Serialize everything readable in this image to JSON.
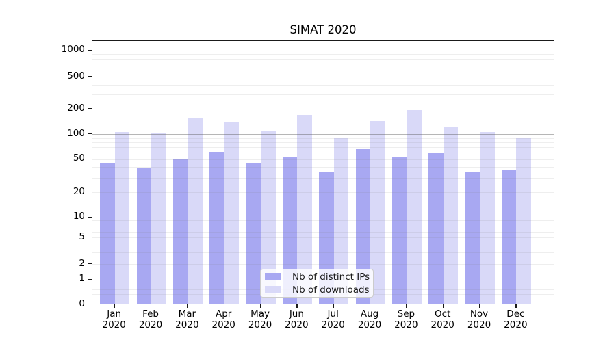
{
  "chart_data": {
    "type": "bar",
    "title": "SIMAT 2020",
    "categories": [
      "Jan 2020",
      "Feb 2020",
      "Mar 2020",
      "Apr 2020",
      "May 2020",
      "Jun 2020",
      "Jul 2020",
      "Aug 2020",
      "Sep 2020",
      "Oct 2020",
      "Nov 2020",
      "Dec 2020"
    ],
    "series": [
      {
        "name": "Nb of distinct IPs",
        "color": "#a8a8f2",
        "values": [
          44,
          38,
          50,
          60,
          44,
          52,
          34,
          65,
          53,
          58,
          34,
          37
        ]
      },
      {
        "name": "Nb of downloads",
        "color": "#d9d9f8",
        "values": [
          104,
          101,
          155,
          135,
          105,
          167,
          88,
          140,
          190,
          118,
          104,
          88
        ]
      }
    ],
    "xlabel": "",
    "ylabel": "",
    "yscale": "symlog",
    "ylim": [
      0,
      1300
    ],
    "yticks": [
      0,
      1,
      2,
      5,
      10,
      20,
      50,
      100,
      200,
      500,
      1000
    ],
    "grid": true,
    "legend_position": "lower center"
  },
  "style": {
    "grid_major_color": "#8c8c8c",
    "grid_minor_color": "#e3e3e3",
    "spine_color": "#1a1a1a",
    "background": "#ffffff"
  }
}
